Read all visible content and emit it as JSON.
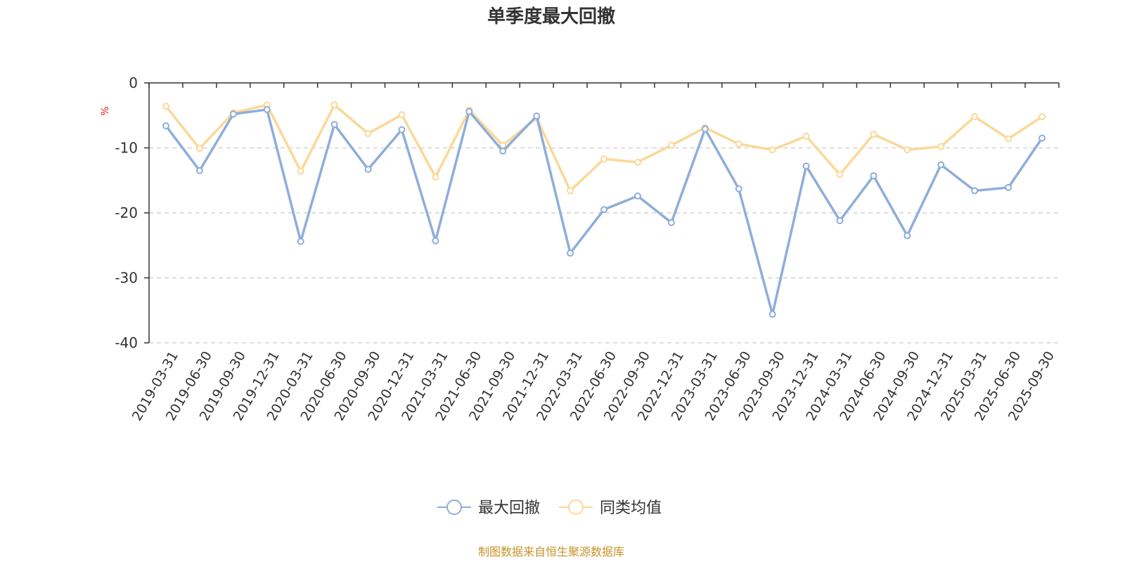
{
  "chart_data": {
    "type": "line",
    "title": "单季度最大回撤",
    "ylabel": "%",
    "xlabel": "",
    "ylim": [
      -40,
      0
    ],
    "yticks": [
      0,
      -10,
      -20,
      -30,
      -40
    ],
    "grid": true,
    "legend_position": "bottom-center",
    "categories": [
      "2019-03-31",
      "2019-06-30",
      "2019-09-30",
      "2019-12-31",
      "2020-03-31",
      "2020-06-30",
      "2020-09-30",
      "2020-12-31",
      "2021-03-31",
      "2021-06-30",
      "2021-09-30",
      "2021-12-31",
      "2022-03-31",
      "2022-06-30",
      "2022-09-30",
      "2022-12-31",
      "2023-03-31",
      "2023-06-30",
      "2023-09-30",
      "2023-12-31",
      "2024-03-31",
      "2024-06-30",
      "2024-09-30",
      "2024-12-31",
      "2025-03-31",
      "2025-06-30",
      "2025-09-30"
    ],
    "series": [
      {
        "name": "最大回撤",
        "color": "#8eaddb",
        "values": [
          -6.6,
          -13.5,
          -4.8,
          -4.1,
          -24.4,
          -6.4,
          -13.3,
          -7.2,
          -24.3,
          -4.4,
          -10.5,
          -5.1,
          -26.2,
          -19.5,
          -17.4,
          -21.5,
          -7.1,
          -16.3,
          -35.6,
          -12.8,
          -21.2,
          -14.3,
          -23.5,
          -12.6,
          -16.6,
          -16.1,
          -8.5
        ]
      },
      {
        "name": "同类均值",
        "color": "#fbd897",
        "values": [
          -3.6,
          -10.1,
          -4.6,
          -3.4,
          -13.6,
          -3.4,
          -7.8,
          -4.9,
          -14.5,
          -4.2,
          -9.6,
          -5.4,
          -16.6,
          -11.7,
          -12.2,
          -9.6,
          -6.9,
          -9.4,
          -10.3,
          -8.2,
          -14.1,
          -7.9,
          -10.3,
          -9.8,
          -5.2,
          -8.6,
          -5.2
        ]
      }
    ]
  },
  "source": {
    "text": "制图数据来自恒生聚源数据库",
    "color": "#c8922a"
  },
  "ylabel_color": "#e02020"
}
